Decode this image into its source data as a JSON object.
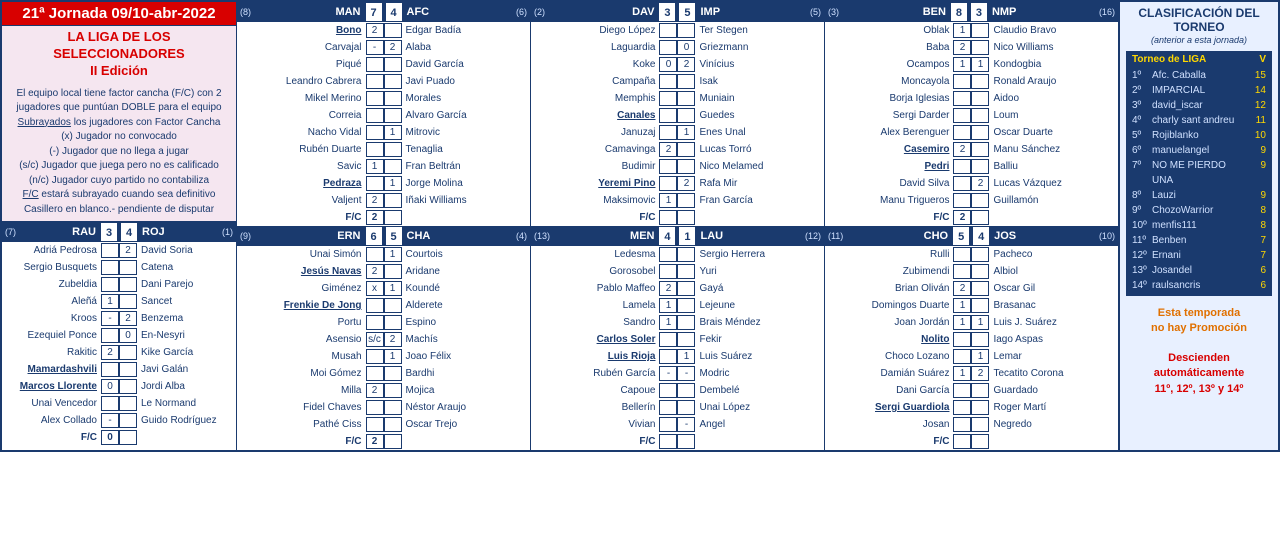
{
  "header": {
    "jornada": "21ª Jornada 09/10-abr-2022",
    "title1": "LA LIGA DE LOS",
    "title2": "SELECCIONADORES",
    "title3": "II Edición"
  },
  "rules": [
    "El equipo local tiene factor cancha (F/C) con 2 jugadores que puntúan DOBLE para el equipo",
    "<span class='u'>Subrayados</span> los jugadores con Factor Cancha",
    "(x) Jugador no convocado",
    "(-) Jugador que no llega a jugar",
    "(s/c) Jugador que juega pero no es calificado",
    "(n/c) Jugador cuyo partido no contabiliza",
    "<span class='u'>F/C</span> estará subrayado cuando sea definitivo",
    "Casillero en blanco.- pendiente de disputar"
  ],
  "matches": [
    {
      "hs": "(8)",
      "ht": "MAN",
      "hsc": "7",
      "asc": "4",
      "at": "AFC",
      "as": "(6)",
      "home": [
        {
          "n": "Bono",
          "u": true,
          "v": "2"
        },
        {
          "n": "Carvajal",
          "v": "-"
        },
        {
          "n": "Piqué",
          "v": ""
        },
        {
          "n": "Leandro Cabrera",
          "v": ""
        },
        {
          "n": "Mikel Merino",
          "v": ""
        },
        {
          "n": "Correia",
          "v": ""
        },
        {
          "n": "Nacho Vidal",
          "v": ""
        },
        {
          "n": "Rubén Duarte",
          "v": ""
        },
        {
          "n": "Savic",
          "v": "1"
        },
        {
          "n": "Pedraza",
          "u": true,
          "v": ""
        },
        {
          "n": "Valjent",
          "v": "2"
        },
        {
          "n": "F/C",
          "v": "2",
          "fc": true
        }
      ],
      "away": [
        {
          "n": "Edgar Badía",
          "v": ""
        },
        {
          "n": "Alaba",
          "v": "2"
        },
        {
          "n": "David García",
          "v": ""
        },
        {
          "n": "Javi Puado",
          "v": ""
        },
        {
          "n": "Morales",
          "v": ""
        },
        {
          "n": "Alvaro García",
          "v": ""
        },
        {
          "n": "Mitrovic",
          "v": "1"
        },
        {
          "n": "Tenaglia",
          "v": ""
        },
        {
          "n": "Fran Beltrán",
          "v": ""
        },
        {
          "n": "Jorge Molina",
          "v": "1"
        },
        {
          "n": "Iñaki Williams",
          "v": ""
        },
        {
          "n": "",
          "v": "",
          "fc": true
        }
      ]
    },
    {
      "hs": "(2)",
      "ht": "DAV",
      "hsc": "3",
      "asc": "5",
      "at": "IMP",
      "as": "(5)",
      "home": [
        {
          "n": "Diego López",
          "v": ""
        },
        {
          "n": "Laguardia",
          "v": ""
        },
        {
          "n": "Koke",
          "v": "0"
        },
        {
          "n": "Campaña",
          "v": ""
        },
        {
          "n": "Memphis",
          "v": ""
        },
        {
          "n": "Canales",
          "u": true,
          "v": ""
        },
        {
          "n": "Januzaj",
          "v": ""
        },
        {
          "n": "Camavinga",
          "v": "2"
        },
        {
          "n": "Budimir",
          "v": ""
        },
        {
          "n": "Yeremi Pino",
          "u": true,
          "v": ""
        },
        {
          "n": "Maksimovic",
          "v": "1"
        },
        {
          "n": "F/C",
          "v": "",
          "fc": true
        }
      ],
      "away": [
        {
          "n": "Ter Stegen",
          "v": ""
        },
        {
          "n": "Griezmann",
          "v": "0"
        },
        {
          "n": "Vinícius",
          "v": "2"
        },
        {
          "n": "Isak",
          "v": ""
        },
        {
          "n": "Muniain",
          "v": ""
        },
        {
          "n": "Guedes",
          "v": ""
        },
        {
          "n": "Enes Unal",
          "v": "1"
        },
        {
          "n": "Lucas Torró",
          "v": ""
        },
        {
          "n": "Nico Melamed",
          "v": ""
        },
        {
          "n": "Rafa Mir",
          "v": "2"
        },
        {
          "n": "Fran García",
          "v": ""
        },
        {
          "n": "",
          "v": "",
          "fc": true
        }
      ]
    },
    {
      "hs": "(3)",
      "ht": "BEN",
      "hsc": "8",
      "asc": "3",
      "at": "NMP",
      "as": "(16)",
      "home": [
        {
          "n": "Oblak",
          "v": "1"
        },
        {
          "n": "Baba",
          "v": "2"
        },
        {
          "n": "Ocampos",
          "v": "1"
        },
        {
          "n": "Moncayola",
          "v": ""
        },
        {
          "n": "Borja Iglesias",
          "v": ""
        },
        {
          "n": "Sergi Darder",
          "v": ""
        },
        {
          "n": "Alex Berenguer",
          "v": ""
        },
        {
          "n": "Casemiro",
          "u": true,
          "v": "2"
        },
        {
          "n": "Pedri",
          "u": true,
          "v": ""
        },
        {
          "n": "David Silva",
          "v": ""
        },
        {
          "n": "Manu Trigueros",
          "v": ""
        },
        {
          "n": "F/C",
          "v": "2",
          "fc": true
        }
      ],
      "away": [
        {
          "n": "Claudio Bravo",
          "v": ""
        },
        {
          "n": "Nico Williams",
          "v": ""
        },
        {
          "n": "Kondogbia",
          "v": "1"
        },
        {
          "n": "Ronald Araujo",
          "v": ""
        },
        {
          "n": "Aidoo",
          "v": ""
        },
        {
          "n": "Loum",
          "v": ""
        },
        {
          "n": "Oscar Duarte",
          "v": ""
        },
        {
          "n": "Manu Sánchez",
          "v": ""
        },
        {
          "n": "Balliu",
          "v": ""
        },
        {
          "n": "Lucas Vázquez",
          "v": "2"
        },
        {
          "n": "Guillamón",
          "v": ""
        },
        {
          "n": "",
          "v": "",
          "fc": true
        }
      ]
    },
    {
      "hs": "(7)",
      "ht": "RAU",
      "hsc": "3",
      "asc": "4",
      "at": "ROJ",
      "as": "(1)",
      "lower": true,
      "home": [
        {
          "n": "Adriá Pedrosa",
          "v": ""
        },
        {
          "n": "Sergio Busquets",
          "v": ""
        },
        {
          "n": "Zubeldia",
          "v": ""
        },
        {
          "n": "Aleñá",
          "v": "1"
        },
        {
          "n": "Kroos",
          "v": "-"
        },
        {
          "n": "Ezequiel Ponce",
          "v": ""
        },
        {
          "n": "Rakitic",
          "v": "2"
        },
        {
          "n": "Mamardashvili",
          "u": true,
          "v": ""
        },
        {
          "n": "Marcos Llorente",
          "u": true,
          "v": "0"
        },
        {
          "n": "Unai Vencedor",
          "v": ""
        },
        {
          "n": "Alex Collado",
          "v": "-"
        },
        {
          "n": "F/C",
          "v": "0",
          "fc": true
        }
      ],
      "away": [
        {
          "n": "David Soria",
          "v": "2"
        },
        {
          "n": "Catena",
          "v": ""
        },
        {
          "n": "Dani Parejo",
          "v": ""
        },
        {
          "n": "Sancet",
          "v": ""
        },
        {
          "n": "Benzema",
          "v": "2"
        },
        {
          "n": "En-Nesyri",
          "v": "0"
        },
        {
          "n": "Kike García",
          "v": ""
        },
        {
          "n": "Javi Galán",
          "v": ""
        },
        {
          "n": "Jordi Alba",
          "v": ""
        },
        {
          "n": "Le Normand",
          "v": ""
        },
        {
          "n": "Guido Rodríguez",
          "v": ""
        },
        {
          "n": "",
          "v": "",
          "fc": true
        }
      ]
    },
    {
      "hs": "(9)",
      "ht": "ERN",
      "hsc": "6",
      "asc": "5",
      "at": "CHA",
      "as": "(4)",
      "home": [
        {
          "n": "Unai Simón",
          "v": ""
        },
        {
          "n": "Jesús Navas",
          "u": true,
          "v": "2"
        },
        {
          "n": "Giménez",
          "v": "x"
        },
        {
          "n": "Frenkie De Jong",
          "u": true,
          "v": ""
        },
        {
          "n": "Portu",
          "v": ""
        },
        {
          "n": "Asensio",
          "v": "s/c"
        },
        {
          "n": "Musah",
          "v": ""
        },
        {
          "n": "Moi Gómez",
          "v": ""
        },
        {
          "n": "Milla",
          "v": "2"
        },
        {
          "n": "Fidel Chaves",
          "v": ""
        },
        {
          "n": "Pathé Ciss",
          "v": ""
        },
        {
          "n": "F/C",
          "v": "2",
          "fc": true
        }
      ],
      "away": [
        {
          "n": "Courtois",
          "v": "1"
        },
        {
          "n": "Aridane",
          "v": ""
        },
        {
          "n": "Koundé",
          "v": "1"
        },
        {
          "n": "Alderete",
          "v": ""
        },
        {
          "n": "Espino",
          "v": ""
        },
        {
          "n": "Machís",
          "v": "2"
        },
        {
          "n": "Joao Félix",
          "v": "1"
        },
        {
          "n": "Bardhi",
          "v": ""
        },
        {
          "n": "Mojica",
          "v": ""
        },
        {
          "n": "Néstor Araujo",
          "v": ""
        },
        {
          "n": "Oscar Trejo",
          "v": ""
        },
        {
          "n": "",
          "v": "",
          "fc": true
        }
      ]
    },
    {
      "hs": "(13)",
      "ht": "MEN",
      "hsc": "4",
      "asc": "1",
      "at": "LAU",
      "as": "(12)",
      "home": [
        {
          "n": "Ledesma",
          "v": ""
        },
        {
          "n": "Gorosobel",
          "v": ""
        },
        {
          "n": "Pablo Maffeo",
          "v": "2"
        },
        {
          "n": "Lamela",
          "v": "1"
        },
        {
          "n": "Sandro",
          "v": "1"
        },
        {
          "n": "Carlos Soler",
          "u": true,
          "v": ""
        },
        {
          "n": "Luis Rioja",
          "u": true,
          "v": ""
        },
        {
          "n": "Rubén García",
          "v": "-"
        },
        {
          "n": "Capoue",
          "v": ""
        },
        {
          "n": "Bellerín",
          "v": ""
        },
        {
          "n": "Vivian",
          "v": ""
        },
        {
          "n": "F/C",
          "v": "",
          "fc": true
        }
      ],
      "away": [
        {
          "n": "Sergio Herrera",
          "v": ""
        },
        {
          "n": "Yuri",
          "v": ""
        },
        {
          "n": "Gayá",
          "v": ""
        },
        {
          "n": "Lejeune",
          "v": ""
        },
        {
          "n": "Brais Méndez",
          "v": ""
        },
        {
          "n": "Fekir",
          "v": ""
        },
        {
          "n": "Luis Suárez",
          "v": "1"
        },
        {
          "n": "Modric",
          "v": "-"
        },
        {
          "n": "Dembelé",
          "v": ""
        },
        {
          "n": "Unai López",
          "v": ""
        },
        {
          "n": "Angel",
          "v": "-"
        },
        {
          "n": "",
          "v": "",
          "fc": true
        }
      ]
    },
    {
      "hs": "(11)",
      "ht": "CHO",
      "hsc": "5",
      "asc": "4",
      "at": "JOS",
      "as": "(10)",
      "home": [
        {
          "n": "Rulli",
          "v": ""
        },
        {
          "n": "Zubimendi",
          "v": ""
        },
        {
          "n": "Brian Oliván",
          "v": "2"
        },
        {
          "n": "Domingos Duarte",
          "v": "1"
        },
        {
          "n": "Joan Jordán",
          "v": "1"
        },
        {
          "n": "Nolito",
          "u": true,
          "v": ""
        },
        {
          "n": "Choco Lozano",
          "v": ""
        },
        {
          "n": "Damián Suárez",
          "v": "1"
        },
        {
          "n": "Dani García",
          "v": ""
        },
        {
          "n": "Sergi Guardiola",
          "u": true,
          "v": ""
        },
        {
          "n": "Josan",
          "v": ""
        },
        {
          "n": "F/C",
          "v": "",
          "fc": true
        }
      ],
      "away": [
        {
          "n": "Pacheco",
          "v": ""
        },
        {
          "n": "Albiol",
          "v": ""
        },
        {
          "n": "Oscar Gil",
          "v": ""
        },
        {
          "n": "Brasanac",
          "v": ""
        },
        {
          "n": "Luis J. Suárez",
          "v": "1"
        },
        {
          "n": "Iago Aspas",
          "v": ""
        },
        {
          "n": "Lemar",
          "v": "1"
        },
        {
          "n": "Tecatito Corona",
          "v": "2"
        },
        {
          "n": "Guardado",
          "v": ""
        },
        {
          "n": "Roger Martí",
          "v": ""
        },
        {
          "n": "Negredo",
          "v": ""
        },
        {
          "n": "",
          "v": "",
          "fc": true
        }
      ]
    }
  ],
  "clasif": {
    "title": "CLASIFICACIÓN DEL TORNEO",
    "sub": "(anterior a esta jornada)",
    "tbl_title": "Torneo de LIGA",
    "col_v": "V",
    "rows": [
      {
        "p": "1º",
        "n": "Afc. Caballa",
        "v": "15"
      },
      {
        "p": "2º",
        "n": "IMPARCIAL",
        "v": "14"
      },
      {
        "p": "3º",
        "n": "david_iscar",
        "v": "12"
      },
      {
        "p": "4º",
        "n": "charly sant andreu",
        "v": "11"
      },
      {
        "p": "5º",
        "n": "Rojiblanko",
        "v": "10"
      },
      {
        "p": "6º",
        "n": "manuelangel",
        "v": "9"
      },
      {
        "p": "7º",
        "n": "NO ME PIERDO UNA",
        "v": "9"
      },
      {
        "p": "8º",
        "n": "Lauzi",
        "v": "9"
      },
      {
        "p": "9º",
        "n": "ChozoWarrior",
        "v": "8"
      },
      {
        "p": "10º",
        "n": "menfis111",
        "v": "8"
      },
      {
        "p": "11º",
        "n": "Benben",
        "v": "7"
      },
      {
        "p": "12º",
        "n": "Ernani",
        "v": "7"
      },
      {
        "p": "13º",
        "n": "Josandel",
        "v": "6"
      },
      {
        "p": "14º",
        "n": "raulsancris",
        "v": "6"
      }
    ],
    "note_o1": "Esta temporada",
    "note_o2": "no hay Promoción",
    "note_r1": "Descienden automáticamente",
    "note_r2": "11º, 12º, 13º y 14º"
  }
}
